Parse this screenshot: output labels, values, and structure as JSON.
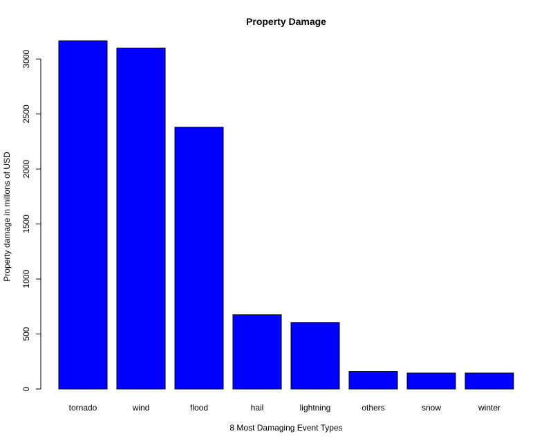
{
  "chart_data": {
    "type": "bar",
    "title": "Property Damage",
    "xlabel": "8 Most Damaging Event Types",
    "ylabel": "Property damage in millons of USD",
    "categories": [
      "tornado",
      "wind",
      "flood",
      "hail",
      "lightning",
      "others",
      "snow",
      "winter"
    ],
    "values": [
      3165,
      3100,
      2380,
      675,
      605,
      160,
      145,
      145
    ],
    "ylim": [
      0,
      3165
    ],
    "yticks": [
      0,
      500,
      1000,
      1500,
      2000,
      2500,
      3000
    ],
    "ytick_labels": [
      "0",
      "500",
      "1000",
      "1500",
      "2000",
      "2500",
      "3000"
    ],
    "bar_color": "#0000ff",
    "grid": false,
    "legend": "none"
  }
}
